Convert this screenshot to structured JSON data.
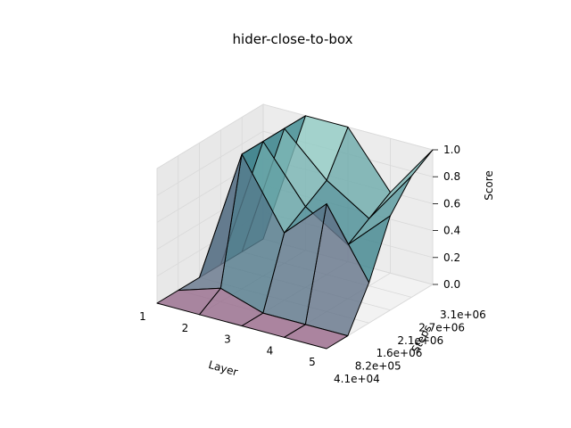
{
  "chart_data": {
    "type": "surface3d",
    "title": "hider-close-to-box",
    "xlabel": "Layer",
    "ylabel": "Steps",
    "zlabel": "Score",
    "x": [
      1,
      2,
      3,
      4,
      5
    ],
    "y_ticks": [
      "4.1e+04",
      "8.2e+05",
      "1.6e+06",
      "2.1e+06",
      "2.7e+06",
      "3.1e+06"
    ],
    "zlim": [
      0.0,
      1.0
    ],
    "z_ticks": [
      "0.0",
      "0.2",
      "0.4",
      "0.6",
      "0.8",
      "1.0"
    ],
    "grid": true,
    "z_values": [
      [
        0.0,
        0.0,
        0.0,
        0.0,
        0.0
      ],
      [
        0.0,
        0.1,
        0.0,
        0.0,
        0.0
      ],
      [
        0.0,
        1.0,
        0.5,
        0.8,
        0.3
      ],
      [
        0.0,
        1.0,
        0.6,
        0.4,
        0.7
      ],
      [
        0.0,
        1.0,
        0.7,
        0.5,
        0.9
      ],
      [
        0.0,
        1.0,
        1.0,
        0.6,
        1.0
      ]
    ],
    "colors": {
      "surface_low": "#9b6b8c",
      "surface_mid": "#3a7f8a",
      "surface_high": "#9fd6cc",
      "edge": "#000000",
      "pane": "#f2f2f2",
      "grid": "#d9d9d9"
    }
  }
}
